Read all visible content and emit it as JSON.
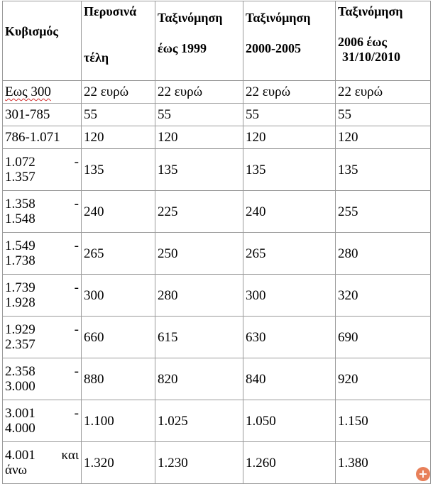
{
  "headers": {
    "cc": "Κυβισμός",
    "last_year_line1": "Περυσινά",
    "last_year_line2": "τέλη",
    "reg99_line1": "Ταξινόμηση",
    "reg99_line2": "έως 1999",
    "reg0005_line1": "Ταξινόμηση",
    "reg0005_line2": "2000-2005",
    "reg06_line1": "Ταξινόμηση",
    "reg06_line2": "2006 έως",
    "reg06_line3": "31/10/2010"
  },
  "rows": [
    {
      "cc": "Εως 300",
      "cc_a": "",
      "cc_b": "",
      "v1": "22 ευρώ",
      "v2": "22 ευρώ",
      "v3": "22 ευρώ",
      "v4": "22 ευρώ"
    },
    {
      "cc": "301-785",
      "cc_a": "",
      "cc_b": "",
      "v1": "55",
      "v2": "55",
      "v3": "55",
      "v4": "55"
    },
    {
      "cc": "786-1.071",
      "cc_a": "",
      "cc_b": "",
      "v1": "120",
      "v2": "120",
      "v3": "120",
      "v4": "120"
    },
    {
      "cc": "",
      "cc_a": "1.072",
      "cc_dash": "-",
      "cc_b": "1.357",
      "v1": "135",
      "v2": "135",
      "v3": "135",
      "v4": "135"
    },
    {
      "cc": "",
      "cc_a": "1.358",
      "cc_dash": "-",
      "cc_b": "1.548",
      "v1": "240",
      "v2": "225",
      "v3": "240",
      "v4": "255"
    },
    {
      "cc": "",
      "cc_a": "1.549",
      "cc_dash": "-",
      "cc_b": "1.738",
      "v1": "265",
      "v2": "250",
      "v3": "265",
      "v4": "280"
    },
    {
      "cc": "",
      "cc_a": "1.739",
      "cc_dash": "-",
      "cc_b": "1.928",
      "v1": "300",
      "v2": "280",
      "v3": "300",
      "v4": "320"
    },
    {
      "cc": "",
      "cc_a": "1.929",
      "cc_dash": "-",
      "cc_b": "2.357",
      "v1": "660",
      "v2": "615",
      "v3": "630",
      "v4": "690"
    },
    {
      "cc": "",
      "cc_a": "2.358",
      "cc_dash": "-",
      "cc_b": "3.000",
      "v1": "880",
      "v2": "820",
      "v3": "840",
      "v4": "920"
    },
    {
      "cc": "",
      "cc_a": "3.001",
      "cc_dash": "-",
      "cc_b": "4.000",
      "v1": "1.100",
      "v2": "1.025",
      "v3": "1.050",
      "v4": "1.150"
    },
    {
      "cc": "",
      "cc_a": "4.001",
      "cc_dash": "και",
      "cc_b": "άνω",
      "v1": "1.320",
      "v2": "1.230",
      "v3": "1.260",
      "v4": "1.380"
    }
  ],
  "zoom_icon": "zoom-in-icon",
  "zoom_symbol": "+"
}
